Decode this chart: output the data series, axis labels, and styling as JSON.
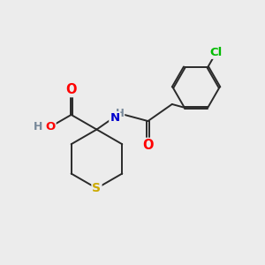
{
  "background_color": "#ececec",
  "bond_color": "#2a2a2a",
  "atom_colors": {
    "O": "#ff0000",
    "N": "#0000cd",
    "S": "#ccaa00",
    "Cl": "#00bb00",
    "H": "#778899",
    "C": "#2a2a2a"
  },
  "bond_width": 1.4,
  "font_size": 9.5,
  "fig_width": 3.0,
  "fig_height": 3.0,
  "dpi": 100
}
